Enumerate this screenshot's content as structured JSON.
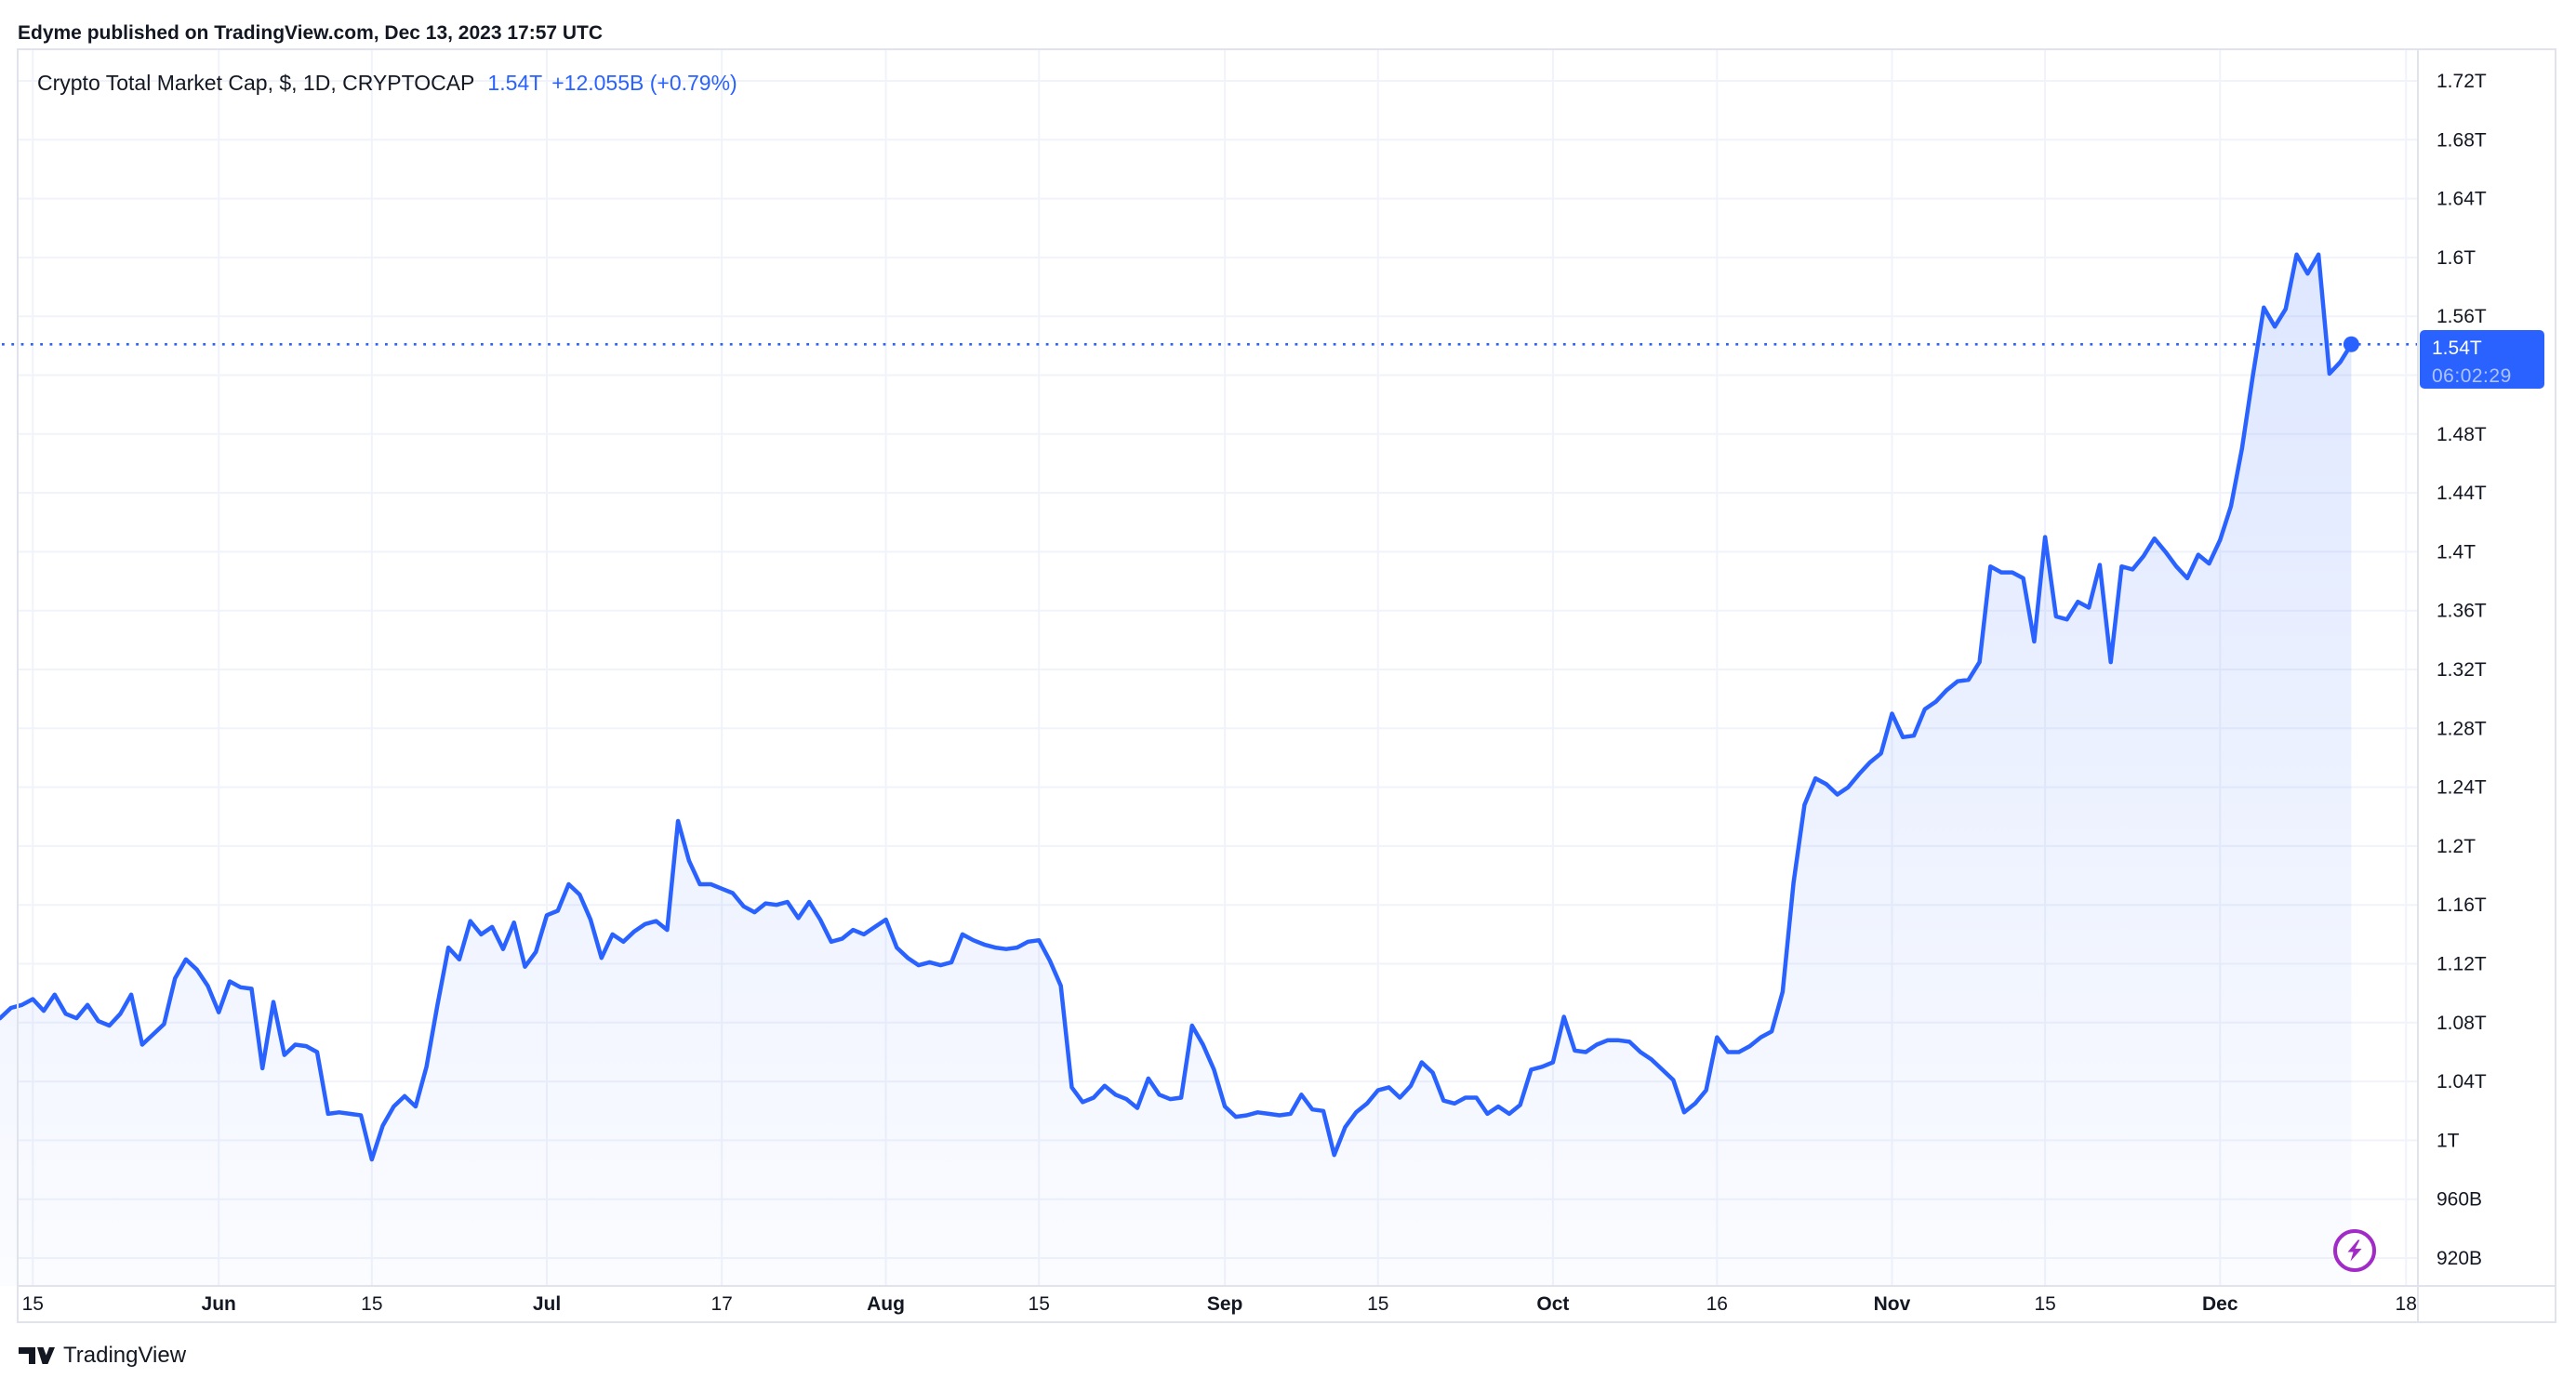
{
  "header": {
    "attribution": "Edyme published on TradingView.com, Dec 13, 2023 17:57 UTC"
  },
  "legend": {
    "title": "Crypto Total Market Cap, $, 1D, CRYPTOCAP",
    "price": "1.54T",
    "change": "+12.055B (+0.79%)"
  },
  "price_label": {
    "value": "1.54T",
    "countdown": "06:02:29"
  },
  "footer": {
    "brand": "TradingView"
  },
  "colors": {
    "accent": "#2962FF",
    "text": "#131722",
    "grid": "#F0F3FA",
    "border": "#E0E3EB",
    "flash": "#A22BC8",
    "area_top": "rgba(41,98,255,0.18)",
    "area_bottom": "rgba(41,98,255,0.02)"
  },
  "chart_data": {
    "type": "area",
    "title": "Crypto Total Market Cap, $, 1D, CRYPTOCAP",
    "symbol": "CRYPTOCAP:TOTAL",
    "interval": "1D",
    "unit": "USD billions",
    "start_date": "2023-05-12",
    "end_date": "2023-12-13",
    "grid": true,
    "legend_position": "top-left",
    "current": {
      "value": 1541,
      "label": "1.54T",
      "change_label": "+12.055B (+0.79%)",
      "countdown": "06:02:29"
    },
    "y_axis": {
      "side": "right",
      "min": 920,
      "max": 1720,
      "tick_step": 40,
      "ticks": [
        {
          "value": 1720,
          "label": "1.72T"
        },
        {
          "value": 1680,
          "label": "1.68T"
        },
        {
          "value": 1640,
          "label": "1.64T"
        },
        {
          "value": 1600,
          "label": "1.6T"
        },
        {
          "value": 1560,
          "label": "1.56T"
        },
        {
          "value": 1520,
          "label": "1.52T"
        },
        {
          "value": 1480,
          "label": "1.48T"
        },
        {
          "value": 1440,
          "label": "1.44T"
        },
        {
          "value": 1400,
          "label": "1.4T"
        },
        {
          "value": 1360,
          "label": "1.36T"
        },
        {
          "value": 1320,
          "label": "1.32T"
        },
        {
          "value": 1280,
          "label": "1.28T"
        },
        {
          "value": 1240,
          "label": "1.24T"
        },
        {
          "value": 1200,
          "label": "1.2T"
        },
        {
          "value": 1160,
          "label": "1.16T"
        },
        {
          "value": 1120,
          "label": "1.12T"
        },
        {
          "value": 1080,
          "label": "1.08T"
        },
        {
          "value": 1040,
          "label": "1.04T"
        },
        {
          "value": 1000,
          "label": "1T"
        },
        {
          "value": 960,
          "label": "960B"
        },
        {
          "value": 920,
          "label": "920B"
        }
      ]
    },
    "x_axis": {
      "ticks": [
        {
          "label": "15",
          "day_index": 3,
          "bold": false
        },
        {
          "label": "Jun",
          "day_index": 20,
          "bold": true
        },
        {
          "label": "15",
          "day_index": 34,
          "bold": false
        },
        {
          "label": "Jul",
          "day_index": 50,
          "bold": true
        },
        {
          "label": "17",
          "day_index": 66,
          "bold": false
        },
        {
          "label": "Aug",
          "day_index": 81,
          "bold": true
        },
        {
          "label": "15",
          "day_index": 95,
          "bold": false
        },
        {
          "label": "Sep",
          "day_index": 112,
          "bold": true
        },
        {
          "label": "15",
          "day_index": 126,
          "bold": false
        },
        {
          "label": "Oct",
          "day_index": 142,
          "bold": true
        },
        {
          "label": "16",
          "day_index": 157,
          "bold": false
        },
        {
          "label": "Nov",
          "day_index": 173,
          "bold": true
        },
        {
          "label": "15",
          "day_index": 187,
          "bold": false
        },
        {
          "label": "Dec",
          "day_index": 203,
          "bold": true
        },
        {
          "label": "18",
          "day_index": 220,
          "bold": false
        }
      ]
    },
    "values": [
      1083,
      1090,
      1092,
      1096,
      1088,
      1099,
      1086,
      1083,
      1092,
      1081,
      1078,
      1086,
      1099,
      1065,
      1072,
      1079,
      1110,
      1123,
      1116,
      1105,
      1087,
      1108,
      1104,
      1103,
      1049,
      1094,
      1058,
      1065,
      1064,
      1060,
      1018,
      1019,
      1018,
      1017,
      987,
      1010,
      1023,
      1030,
      1023,
      1050,
      1092,
      1131,
      1123,
      1149,
      1140,
      1145,
      1130,
      1148,
      1118,
      1128,
      1153,
      1156,
      1174,
      1167,
      1150,
      1124,
      1140,
      1135,
      1142,
      1147,
      1149,
      1143,
      1217,
      1190,
      1174,
      1174,
      1171,
      1168,
      1159,
      1155,
      1161,
      1160,
      1162,
      1151,
      1162,
      1150,
      1135,
      1137,
      1143,
      1140,
      1145,
      1150,
      1131,
      1124,
      1119,
      1121,
      1119,
      1121,
      1140,
      1136,
      1133,
      1131,
      1130,
      1131,
      1135,
      1136,
      1122,
      1105,
      1036,
      1026,
      1029,
      1037,
      1031,
      1028,
      1022,
      1042,
      1031,
      1028,
      1029,
      1078,
      1065,
      1048,
      1023,
      1016,
      1017,
      1019,
      1018,
      1017,
      1018,
      1031,
      1021,
      1020,
      990,
      1009,
      1019,
      1025,
      1034,
      1036,
      1029,
      1037,
      1053,
      1046,
      1027,
      1025,
      1029,
      1029,
      1018,
      1023,
      1018,
      1024,
      1048,
      1050,
      1053,
      1084,
      1061,
      1060,
      1065,
      1068,
      1068,
      1067,
      1060,
      1055,
      1048,
      1041,
      1019,
      1025,
      1034,
      1070,
      1060,
      1060,
      1064,
      1070,
      1074,
      1101,
      1175,
      1228,
      1246,
      1242,
      1235,
      1240,
      1249,
      1257,
      1263,
      1290,
      1274,
      1275,
      1293,
      1298,
      1306,
      1312,
      1313,
      1325,
      1390,
      1386,
      1386,
      1382,
      1339,
      1410,
      1356,
      1354,
      1366,
      1362,
      1391,
      1325,
      1390,
      1388,
      1397,
      1409,
      1400,
      1390,
      1382,
      1398,
      1392,
      1408,
      1431,
      1470,
      1520,
      1566,
      1553,
      1565,
      1602,
      1589,
      1602,
      1521,
      1529,
      1541
    ]
  }
}
